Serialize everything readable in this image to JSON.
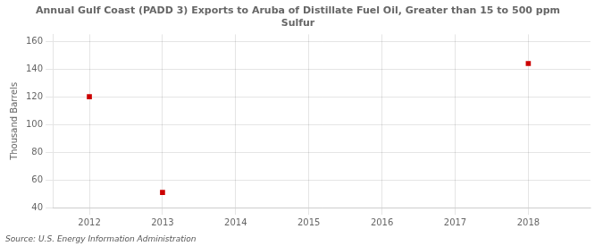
{
  "chart_data": {
    "type": "scatter",
    "title": "Annual Gulf Coast (PADD 3) Exports to Aruba of Distillate Fuel Oil, Greater than 15 to 500 ppm\nSulfur",
    "ylabel": "Thousand Barrels",
    "source": "Source: U.S. Energy Information Administration",
    "x": [
      2012,
      2013,
      2018
    ],
    "values": [
      120,
      51,
      144
    ],
    "xlim": [
      2011.5,
      2018.85
    ],
    "xticks": [
      2012,
      2013,
      2014,
      2015,
      2016,
      2017,
      2018
    ],
    "ylim": [
      40,
      165
    ],
    "yticks": [
      40,
      60,
      80,
      100,
      120,
      140,
      160
    ],
    "color": "#cc0000",
    "marker": "square",
    "grid": true
  }
}
